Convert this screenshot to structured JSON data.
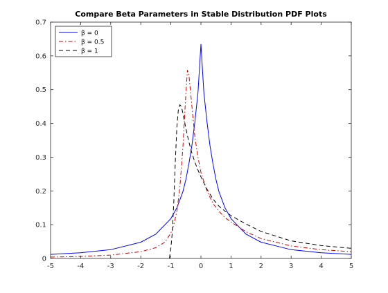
{
  "chart_data": {
    "type": "line",
    "title": "Compare Beta Parameters in Stable Distribution PDF Plots",
    "xlabel": "",
    "ylabel": "",
    "xlim": [
      -5,
      5
    ],
    "ylim": [
      0,
      0.7
    ],
    "xticks": [
      -5,
      -4,
      -3,
      -2,
      -1,
      0,
      1,
      2,
      3,
      4,
      5
    ],
    "yticks": [
      0,
      0.1,
      0.2,
      0.3,
      0.4,
      0.5,
      0.6,
      0.7
    ],
    "grid": false,
    "legend_position": "top-left",
    "series": [
      {
        "name": "β = 0",
        "color": "#0000ff",
        "dash": "solid",
        "x": [
          -5,
          -4,
          -3,
          -2,
          -1.5,
          -1,
          -0.8,
          -0.6,
          -0.5,
          -0.4,
          -0.3,
          -0.2,
          -0.1,
          -0.05,
          0,
          0.05,
          0.1,
          0.2,
          0.3,
          0.4,
          0.5,
          0.6,
          0.8,
          1,
          1.5,
          2,
          3,
          4,
          5
        ],
        "y": [
          0.012,
          0.017,
          0.026,
          0.048,
          0.072,
          0.118,
          0.15,
          0.198,
          0.234,
          0.28,
          0.335,
          0.405,
          0.49,
          0.56,
          0.635,
          0.56,
          0.49,
          0.405,
          0.335,
          0.28,
          0.234,
          0.198,
          0.15,
          0.118,
          0.072,
          0.048,
          0.026,
          0.017,
          0.012
        ]
      },
      {
        "name": "β = 0.5",
        "color": "#cc0000",
        "dash": "dashdot",
        "x": [
          -5,
          -4,
          -3,
          -2,
          -1.5,
          -1.2,
          -1,
          -0.9,
          -0.8,
          -0.7,
          -0.6,
          -0.5,
          -0.45,
          -0.4,
          -0.3,
          -0.2,
          -0.1,
          0,
          0.2,
          0.4,
          0.6,
          0.8,
          1,
          1.5,
          2,
          3,
          4,
          5
        ],
        "y": [
          0.004,
          0.006,
          0.01,
          0.02,
          0.032,
          0.048,
          0.075,
          0.1,
          0.14,
          0.21,
          0.33,
          0.49,
          0.558,
          0.545,
          0.45,
          0.36,
          0.3,
          0.255,
          0.2,
          0.163,
          0.14,
          0.121,
          0.108,
          0.079,
          0.059,
          0.037,
          0.026,
          0.02
        ]
      },
      {
        "name": "β = 1",
        "color": "#000000",
        "dash": "dashed",
        "x": [
          -1.05,
          -1.0,
          -0.95,
          -0.9,
          -0.85,
          -0.8,
          -0.75,
          -0.7,
          -0.65,
          -0.6,
          -0.5,
          -0.4,
          -0.3,
          -0.2,
          -0.1,
          0,
          0.2,
          0.4,
          0.6,
          0.8,
          1,
          1.5,
          2,
          3,
          4,
          5
        ],
        "y": [
          0.0,
          0.03,
          0.08,
          0.17,
          0.29,
          0.39,
          0.44,
          0.455,
          0.45,
          0.43,
          0.385,
          0.345,
          0.312,
          0.285,
          0.262,
          0.242,
          0.205,
          0.176,
          0.155,
          0.14,
          0.127,
          0.102,
          0.08,
          0.052,
          0.038,
          0.03
        ]
      }
    ]
  }
}
